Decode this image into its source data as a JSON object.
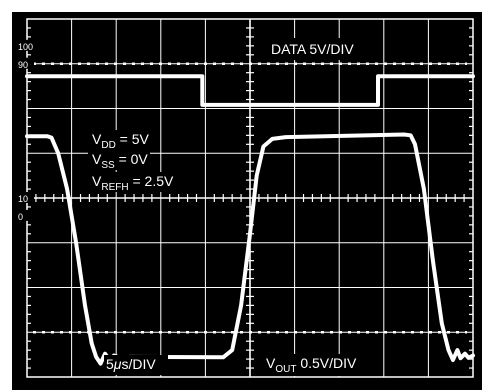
{
  "chart_data": {
    "type": "line",
    "title": "",
    "xlabel": "",
    "ylabel": "",
    "grid": true,
    "graticule": {
      "x_divisions": 10,
      "y_divisions": 8,
      "minor_ticks_per_division": 5
    },
    "x_range_div": [
      0,
      10
    ],
    "y_range_div": [
      0,
      8
    ],
    "reference_marks": [
      "100",
      "90",
      "10",
      "0"
    ],
    "annotations": {
      "data_scale": "DATA 5V/DIV",
      "vdd": {
        "main": "V",
        "sub": "DD",
        "rest": " = 5V"
      },
      "vss": {
        "main": "V",
        "sub": "SS",
        "rest": " = 0V"
      },
      "vrefh": {
        "main": "V",
        "sub": "REFH",
        "rest": " = 2.5V"
      },
      "time_scale": {
        "value": "5",
        "unit_greek": "μ",
        "unit_rest": "s/DIV"
      },
      "vout_scale": {
        "main": "V",
        "sub": "OUT",
        "rest": " 0.5V/DIV"
      }
    },
    "series": [
      {
        "points_div": [
          [
            0.0,
            6.72
          ],
          [
            3.93,
            6.72
          ],
          [
            3.93,
            6.08
          ],
          [
            7.87,
            6.08
          ],
          [
            7.87,
            6.72
          ],
          [
            10.0,
            6.72
          ]
        ]
      },
      {
        "points_div": [
          [
            0.0,
            5.38
          ],
          [
            0.45,
            5.38
          ],
          [
            0.55,
            5.35
          ],
          [
            0.7,
            5.0
          ],
          [
            0.9,
            4.2
          ],
          [
            1.1,
            3.0
          ],
          [
            1.3,
            1.6
          ],
          [
            1.45,
            0.75
          ],
          [
            1.55,
            0.45
          ],
          [
            1.65,
            0.3
          ],
          [
            1.75,
            0.52
          ],
          [
            1.85,
            0.38
          ],
          [
            1.95,
            0.48
          ],
          [
            2.1,
            0.42
          ],
          [
            2.3,
            0.45
          ],
          [
            4.4,
            0.44
          ],
          [
            4.6,
            0.6
          ],
          [
            4.8,
            1.6
          ],
          [
            5.0,
            3.2
          ],
          [
            5.15,
            4.5
          ],
          [
            5.3,
            5.15
          ],
          [
            5.5,
            5.32
          ],
          [
            5.8,
            5.36
          ],
          [
            8.45,
            5.42
          ],
          [
            8.6,
            5.4
          ],
          [
            8.7,
            5.2
          ],
          [
            8.9,
            4.2
          ],
          [
            9.1,
            2.6
          ],
          [
            9.3,
            1.2
          ],
          [
            9.45,
            0.6
          ],
          [
            9.55,
            0.38
          ],
          [
            9.65,
            0.6
          ],
          [
            9.72,
            0.42
          ],
          [
            9.82,
            0.52
          ],
          [
            9.9,
            0.43
          ],
          [
            10.0,
            0.48
          ]
        ]
      }
    ]
  }
}
